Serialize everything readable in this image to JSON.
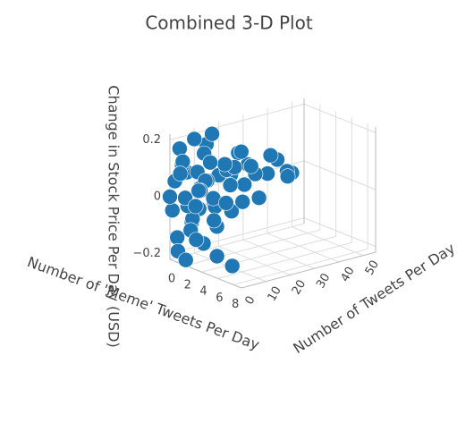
{
  "chart_data": {
    "type": "scatter3d",
    "title": "Combined 3-D Plot",
    "x_label": "Number of 'Meme' Tweets Per Day",
    "y_label": "Number of Tweets Per Day",
    "z_label": "Change in Stock Price Per Day (USD)",
    "color": "#1f77b4",
    "xlim": [
      0,
      9
    ],
    "ylim": [
      0,
      55
    ],
    "zlim": [
      -0.22,
      0.22
    ],
    "xticks": [
      0,
      2,
      4,
      6,
      8
    ],
    "yticks": [
      0,
      10,
      20,
      30,
      40,
      50
    ],
    "zticks": [
      {
        "value": -0.2,
        "label": "−0.2"
      },
      0,
      0.2
    ],
    "series": [
      {
        "x": [
          0,
          0,
          0,
          1,
          1,
          1,
          2,
          2,
          0,
          1,
          0,
          1,
          0,
          0,
          1,
          0,
          0,
          2,
          3,
          1,
          0,
          2,
          1,
          3,
          0,
          1,
          0,
          1,
          2,
          3,
          4,
          5,
          2,
          0,
          1,
          0,
          1,
          2,
          3,
          0,
          1,
          0,
          2,
          0,
          1,
          0,
          2,
          3,
          0,
          1,
          2,
          0,
          1,
          4,
          3,
          6,
          2,
          0,
          1,
          0
        ],
        "y": [
          2,
          5,
          1,
          3,
          8,
          12,
          4,
          10,
          15,
          20,
          25,
          30,
          35,
          40,
          45,
          50,
          48,
          2,
          1,
          6,
          3,
          0,
          0,
          4,
          18,
          22,
          10,
          14,
          6,
          8,
          5,
          3,
          16,
          28,
          26,
          7,
          2,
          12,
          15,
          12,
          9,
          20,
          24,
          32,
          38,
          44,
          30,
          20,
          4,
          1,
          8,
          9,
          16,
          10,
          2,
          6,
          20,
          0,
          4,
          14
        ],
        "z": [
          0.05,
          0.1,
          -0.05,
          0.0,
          0.08,
          0.04,
          -0.02,
          0.12,
          0.15,
          0.06,
          0.02,
          0.05,
          0.0,
          -0.01,
          -0.02,
          -0.03,
          -0.02,
          -0.1,
          -0.12,
          -0.08,
          -0.15,
          -0.2,
          -0.18,
          -0.14,
          -0.06,
          -0.09,
          0.18,
          0.2,
          0.03,
          0.01,
          -0.05,
          -0.16,
          0.1,
          0.09,
          0.11,
          0.07,
          0.13,
          -0.04,
          0.04,
          -0.07,
          0.02,
          0.03,
          0.01,
          0.04,
          0.07,
          0.03,
          -0.05,
          -0.03,
          0.16,
          0.09,
          0.06,
          -0.11,
          -0.13,
          0.0,
          0.05,
          -0.19,
          0.08,
          0.0,
          -0.03,
          0.12
        ]
      }
    ]
  }
}
